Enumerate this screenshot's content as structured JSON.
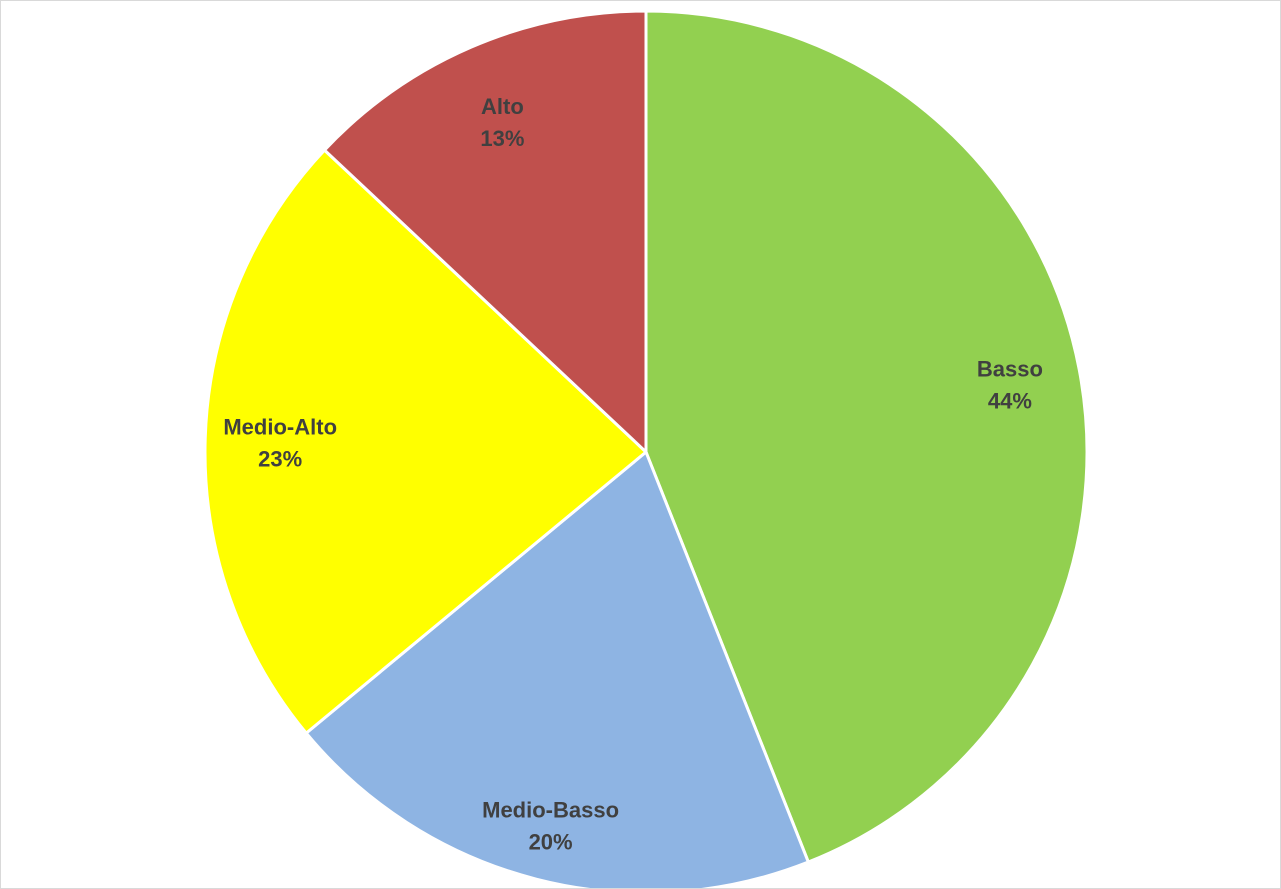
{
  "chart_data": {
    "type": "pie",
    "title": "",
    "slices": [
      {
        "label": "Basso",
        "value": 44,
        "value_label": "44%",
        "color": "#92d050"
      },
      {
        "label": "Medio-Basso",
        "value": 20,
        "value_label": "20%",
        "color": "#8eb4e3"
      },
      {
        "label": "Medio-Alto",
        "value": 23,
        "value_label": "23%",
        "color": "#ffff00"
      },
      {
        "label": "Alto",
        "value": 13,
        "value_label": "13%",
        "color": "#c0504d"
      }
    ],
    "start": "12 o'clock",
    "direction": "clockwise",
    "data_labels": "category and percentage, inside slices",
    "legend": "none"
  }
}
